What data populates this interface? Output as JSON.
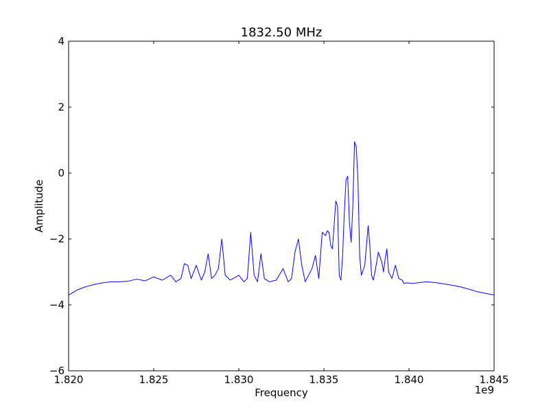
{
  "chart_data": {
    "type": "line",
    "title": "1832.50 MHz",
    "xlabel": "Frequency",
    "ylabel": "Amplitude",
    "x_offset_label": "1e9",
    "xlim": [
      1.82,
      1.845
    ],
    "ylim": [
      -6,
      4
    ],
    "x_ticks": [
      1.82,
      1.825,
      1.83,
      1.835,
      1.84,
      1.845
    ],
    "x_tick_labels": [
      "1.820",
      "1.825",
      "1.830",
      "1.835",
      "1.840",
      "1.845"
    ],
    "y_ticks": [
      -6,
      -4,
      -2,
      0,
      2,
      4
    ],
    "y_tick_labels": [
      "−6",
      "−4",
      "−2",
      "0",
      "2",
      "4"
    ],
    "grid": false,
    "line_color": "#0000ff",
    "series": [
      {
        "x": [
          1.82,
          1.8205,
          1.821,
          1.8215,
          1.822,
          1.8225,
          1.823,
          1.8235,
          1.824,
          1.8245,
          1.825,
          1.8255,
          1.826,
          1.8263,
          1.8266,
          1.8268,
          1.827,
          1.8272,
          1.8275,
          1.8278,
          1.828,
          1.8282,
          1.8284,
          1.8286,
          1.8288,
          1.829,
          1.8292,
          1.8295,
          1.83,
          1.8303,
          1.8305,
          1.8307,
          1.8309,
          1.8311,
          1.8313,
          1.8315,
          1.8318,
          1.8322,
          1.8326,
          1.8329,
          1.8331,
          1.8333,
          1.8335,
          1.8337,
          1.8339,
          1.8341,
          1.8343,
          1.8345,
          1.8347,
          1.8349,
          1.8351,
          1.8352,
          1.8353,
          1.8354,
          1.8355,
          1.8357,
          1.8358,
          1.8359,
          1.836,
          1.8361,
          1.8362,
          1.8363,
          1.8364,
          1.8365,
          1.8366,
          1.8367,
          1.8368,
          1.8369,
          1.837,
          1.8371,
          1.8372,
          1.8374,
          1.8376,
          1.8377,
          1.8378,
          1.8379,
          1.838,
          1.8382,
          1.8384,
          1.8385,
          1.8386,
          1.8387,
          1.8388,
          1.8389,
          1.839,
          1.8392,
          1.8394,
          1.8396,
          1.8397,
          1.8399,
          1.8402,
          1.8405,
          1.841,
          1.8415,
          1.842,
          1.8425,
          1.843,
          1.8435,
          1.844,
          1.8445,
          1.845
        ],
        "y": [
          -3.7,
          -3.55,
          -3.45,
          -3.38,
          -3.33,
          -3.3,
          -3.3,
          -3.28,
          -3.22,
          -3.27,
          -3.15,
          -3.25,
          -3.1,
          -3.3,
          -3.2,
          -2.75,
          -2.8,
          -3.2,
          -2.8,
          -3.25,
          -3.0,
          -2.45,
          -3.2,
          -3.1,
          -2.9,
          -2.0,
          -3.1,
          -3.25,
          -3.1,
          -3.3,
          -3.2,
          -1.8,
          -3.1,
          -3.3,
          -2.45,
          -3.2,
          -3.3,
          -3.25,
          -2.9,
          -3.3,
          -3.2,
          -2.4,
          -2.0,
          -2.8,
          -3.3,
          -3.1,
          -2.9,
          -2.5,
          -3.2,
          -1.8,
          -1.9,
          -1.75,
          -1.8,
          -2.2,
          -2.3,
          -0.85,
          -1.0,
          -3.1,
          -3.25,
          -2.5,
          -1.2,
          -0.2,
          -0.1,
          -1.5,
          -2.1,
          -1.0,
          0.95,
          0.8,
          -0.2,
          -2.5,
          -3.1,
          -2.8,
          -1.6,
          -2.2,
          -3.1,
          -3.25,
          -3.0,
          -2.4,
          -2.7,
          -3.0,
          -2.6,
          -2.3,
          -3.0,
          -3.1,
          -3.2,
          -2.8,
          -3.2,
          -3.25,
          -3.35,
          -3.33,
          -3.35,
          -3.33,
          -3.3,
          -3.32,
          -3.36,
          -3.4,
          -3.45,
          -3.52,
          -3.6,
          -3.65,
          -3.7
        ]
      }
    ]
  }
}
